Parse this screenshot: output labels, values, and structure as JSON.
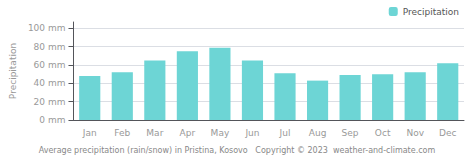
{
  "chart_data": {
    "type": "bar",
    "categories": [
      "Jan",
      "Feb",
      "Mar",
      "Apr",
      "May",
      "Jun",
      "Jul",
      "Aug",
      "Sep",
      "Oct",
      "Nov",
      "Dec"
    ],
    "series": [
      {
        "name": "Precipitation",
        "color": "#6dd5d5",
        "values": [
          48,
          52,
          65,
          75,
          79,
          65,
          51,
          43,
          49,
          50,
          52,
          62
        ]
      }
    ],
    "ylabel": "Precipitation",
    "ylim": [
      0,
      107
    ],
    "yticks": [
      {
        "value": 0,
        "label": "0 mm"
      },
      {
        "value": 20,
        "label": "20 mm"
      },
      {
        "value": 40,
        "label": "40 mm"
      },
      {
        "value": 60,
        "label": "60 mm"
      },
      {
        "value": 80,
        "label": "80 mm"
      },
      {
        "value": 100,
        "label": "100 mm"
      }
    ],
    "grid": true,
    "legend": "upper right",
    "annotations": [
      "Average precipitation (rain/snow) in Pristina, Kosovo   Copyright © 2023  weather-and-climate.com"
    ]
  }
}
